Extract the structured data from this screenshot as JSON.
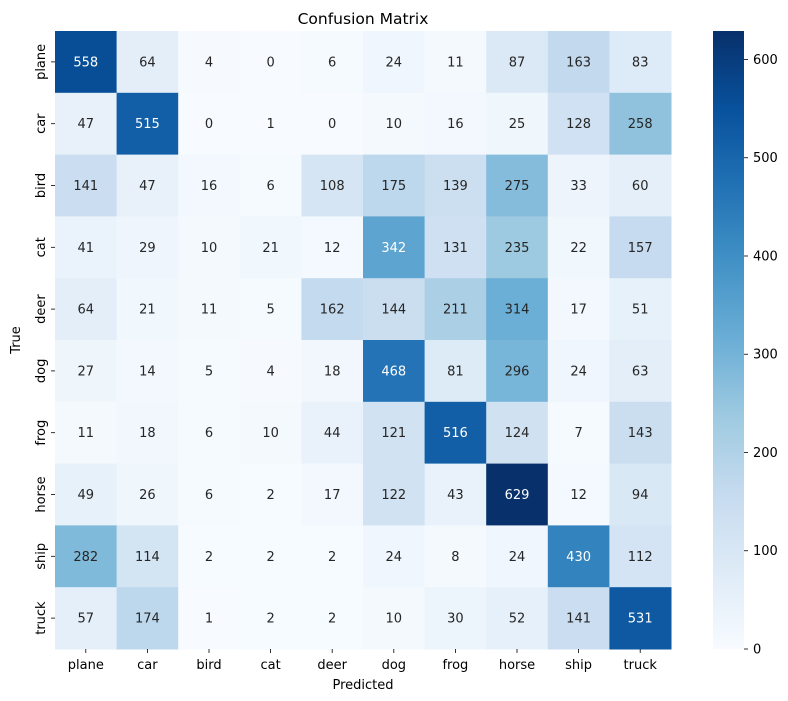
{
  "chart_data": {
    "type": "heatmap",
    "title": "Confusion Matrix",
    "xlabel": "Predicted",
    "ylabel": "True",
    "x_categories": [
      "plane",
      "car",
      "bird",
      "cat",
      "deer",
      "dog",
      "frog",
      "horse",
      "ship",
      "truck"
    ],
    "y_categories": [
      "plane",
      "car",
      "bird",
      "cat",
      "deer",
      "dog",
      "frog",
      "horse",
      "ship",
      "truck"
    ],
    "values": [
      [
        558,
        64,
        4,
        0,
        6,
        24,
        11,
        87,
        163,
        83
      ],
      [
        47,
        515,
        0,
        1,
        0,
        10,
        16,
        25,
        128,
        258
      ],
      [
        141,
        47,
        16,
        6,
        108,
        175,
        139,
        275,
        33,
        60
      ],
      [
        41,
        29,
        10,
        21,
        12,
        342,
        131,
        235,
        22,
        157
      ],
      [
        64,
        21,
        11,
        5,
        162,
        144,
        211,
        314,
        17,
        51
      ],
      [
        27,
        14,
        5,
        4,
        18,
        468,
        81,
        296,
        24,
        63
      ],
      [
        11,
        18,
        6,
        10,
        44,
        121,
        516,
        124,
        7,
        143
      ],
      [
        49,
        26,
        6,
        2,
        17,
        122,
        43,
        629,
        12,
        94
      ],
      [
        282,
        114,
        2,
        2,
        2,
        24,
        8,
        24,
        430,
        112
      ],
      [
        57,
        174,
        1,
        2,
        2,
        10,
        30,
        52,
        141,
        531
      ]
    ],
    "colorbar": {
      "min": 0,
      "max": 629,
      "ticks": [
        0,
        100,
        200,
        300,
        400,
        500,
        600
      ],
      "colormap": "Blues"
    },
    "grid": false
  }
}
